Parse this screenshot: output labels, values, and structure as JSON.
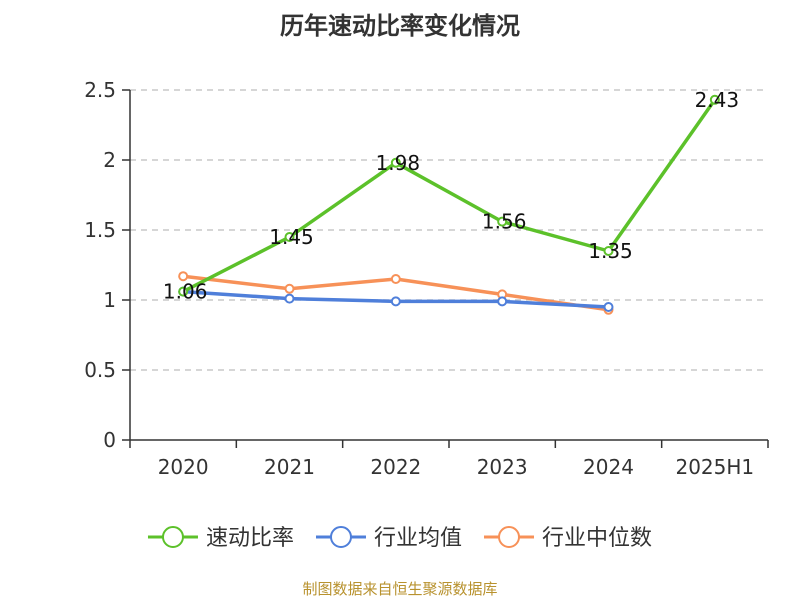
{
  "chart_data": {
    "type": "line",
    "title": "历年速动比率变化情况",
    "categories": [
      "2020",
      "2021",
      "2022",
      "2023",
      "2024",
      "2025H1"
    ],
    "ylim": [
      0,
      2.5
    ],
    "yticks": [
      "0",
      "0.5",
      "1",
      "1.5",
      "2",
      "2.5"
    ],
    "grid": true,
    "legend_position": "bottom",
    "series": [
      {
        "name": "速动比率",
        "color": "#5cc12a",
        "values": [
          1.06,
          1.45,
          1.98,
          1.56,
          1.35,
          2.43
        ],
        "labels": [
          "1.06",
          "1.45",
          "1.98",
          "1.56",
          "1.35",
          "2.43"
        ]
      },
      {
        "name": "行业均值",
        "color": "#4f7fda",
        "values": [
          1.06,
          1.01,
          0.99,
          0.99,
          0.95,
          null
        ]
      },
      {
        "name": "行业中位数",
        "color": "#f79158",
        "values": [
          1.17,
          1.08,
          1.15,
          1.04,
          0.93,
          null
        ]
      }
    ]
  },
  "footer": {
    "source": "制图数据来自恒生聚源数据库"
  }
}
